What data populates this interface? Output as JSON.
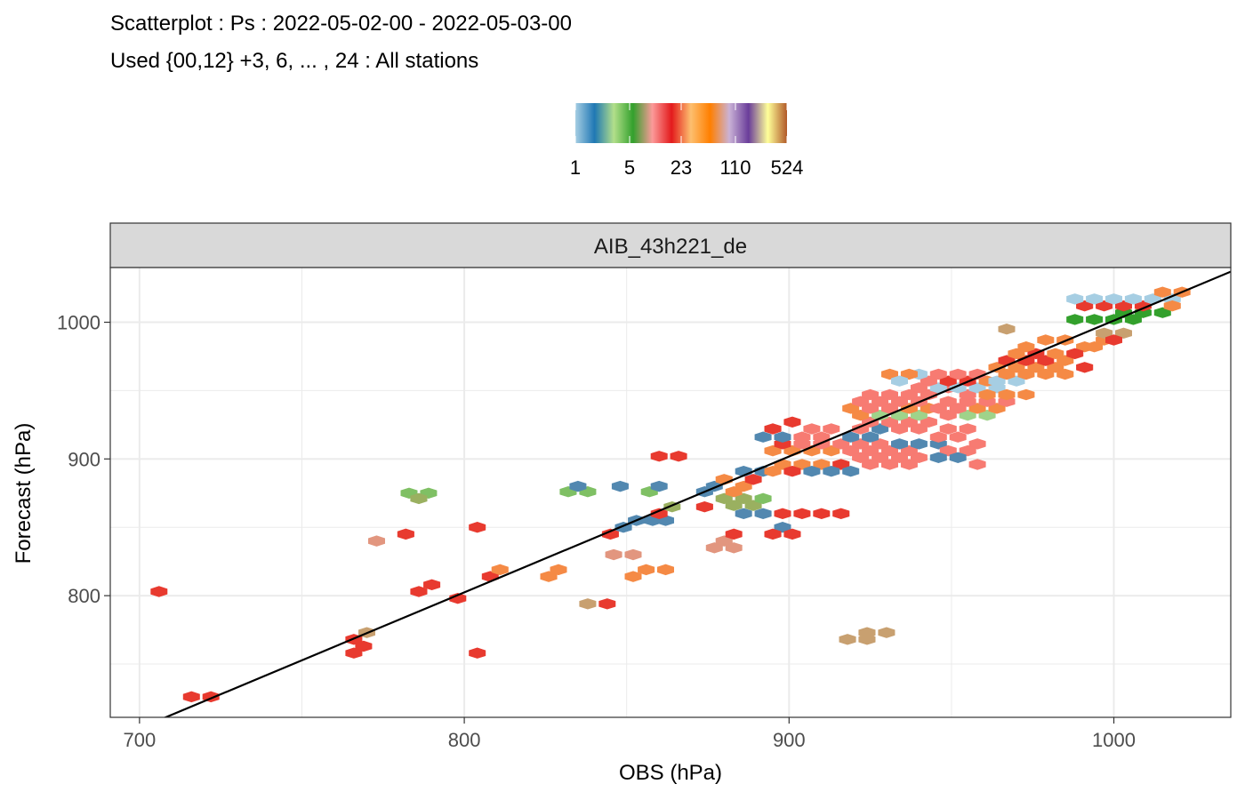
{
  "chart_data": {
    "type": "heatmap",
    "title": "Scatterplot : Ps : 2022-05-02-00 - 2022-05-03-00",
    "subtitle": "Used {00,12} +3, 6, ... , 24 : All stations",
    "panel": "AIB_43h221_de",
    "xlabel": "OBS (hPa)",
    "ylabel": "Forecast (hPa)",
    "xlim": [
      691,
      1036
    ],
    "ylim": [
      711,
      1040
    ],
    "xticks": [
      700,
      800,
      900,
      1000
    ],
    "yticks": [
      800,
      900,
      1000
    ],
    "grid": true,
    "legend": {
      "position": "top",
      "labels": [
        "1",
        "5",
        "23",
        "110",
        "524"
      ],
      "colors": [
        "#a6cee3",
        "#1f78b4",
        "#b2df8a",
        "#33a02c",
        "#fb9a99",
        "#e31a1c",
        "#fdbf6f",
        "#ff7f00",
        "#cab2d6",
        "#6a3d9a",
        "#ffff99",
        "#b15928"
      ]
    },
    "reference_line": {
      "x": [
        700,
        1036
      ],
      "y": [
        703,
        1037
      ]
    },
    "bins": [
      {
        "x": 706,
        "y": 803,
        "c": "#e83a2f"
      },
      {
        "x": 716,
        "y": 726,
        "c": "#e83a2f"
      },
      {
        "x": 722,
        "y": 726,
        "c": "#e83a2f"
      },
      {
        "x": 766,
        "y": 768,
        "c": "#e83a2f"
      },
      {
        "x": 769,
        "y": 763,
        "c": "#e83a2f"
      },
      {
        "x": 766,
        "y": 758,
        "c": "#e83a2f"
      },
      {
        "x": 770,
        "y": 773,
        "c": "#c8a070"
      },
      {
        "x": 773,
        "y": 840,
        "c": "#e2967f"
      },
      {
        "x": 782,
        "y": 845,
        "c": "#e83a2f"
      },
      {
        "x": 783,
        "y": 875,
        "c": "#7fc064"
      },
      {
        "x": 789,
        "y": 875,
        "c": "#7fc064"
      },
      {
        "x": 786,
        "y": 871,
        "c": "#9ab060"
      },
      {
        "x": 786,
        "y": 803,
        "c": "#e83a2f"
      },
      {
        "x": 790,
        "y": 808,
        "c": "#e83a2f"
      },
      {
        "x": 798,
        "y": 798,
        "c": "#e83a2f"
      },
      {
        "x": 804,
        "y": 850,
        "c": "#e83a2f"
      },
      {
        "x": 804,
        "y": 758,
        "c": "#e83a2f"
      },
      {
        "x": 808,
        "y": 814,
        "c": "#e83a2f"
      },
      {
        "x": 811,
        "y": 819,
        "c": "#f58a45"
      },
      {
        "x": 826,
        "y": 814,
        "c": "#f58a45"
      },
      {
        "x": 829,
        "y": 819,
        "c": "#f58a45"
      },
      {
        "x": 832,
        "y": 876,
        "c": "#7fc064"
      },
      {
        "x": 838,
        "y": 876,
        "c": "#7fc064"
      },
      {
        "x": 835,
        "y": 880,
        "c": "#5288b0"
      },
      {
        "x": 838,
        "y": 794,
        "c": "#c8a070"
      },
      {
        "x": 844,
        "y": 794,
        "c": "#e83a2f"
      },
      {
        "x": 845,
        "y": 845,
        "c": "#e83a2f"
      },
      {
        "x": 849,
        "y": 850,
        "c": "#5288b0"
      },
      {
        "x": 853,
        "y": 855,
        "c": "#5288b0"
      },
      {
        "x": 858,
        "y": 855,
        "c": "#5288b0"
      },
      {
        "x": 862,
        "y": 855,
        "c": "#5288b0"
      },
      {
        "x": 848,
        "y": 880,
        "c": "#5288b0"
      },
      {
        "x": 846,
        "y": 830,
        "c": "#e2967f"
      },
      {
        "x": 852,
        "y": 830,
        "c": "#e2967f"
      },
      {
        "x": 852,
        "y": 814,
        "c": "#f58a45"
      },
      {
        "x": 856,
        "y": 819,
        "c": "#f58a45"
      },
      {
        "x": 862,
        "y": 819,
        "c": "#f58a45"
      },
      {
        "x": 857,
        "y": 876,
        "c": "#7fc064"
      },
      {
        "x": 860,
        "y": 880,
        "c": "#5288b0"
      },
      {
        "x": 860,
        "y": 860,
        "c": "#e83a2f"
      },
      {
        "x": 864,
        "y": 865,
        "c": "#9ab060"
      },
      {
        "x": 860,
        "y": 902,
        "c": "#e83a2f"
      },
      {
        "x": 866,
        "y": 902,
        "c": "#e83a2f"
      },
      {
        "x": 877,
        "y": 835,
        "c": "#e2967f"
      },
      {
        "x": 883,
        "y": 835,
        "c": "#e2967f"
      },
      {
        "x": 880,
        "y": 840,
        "c": "#e2967f"
      },
      {
        "x": 874,
        "y": 876,
        "c": "#5288b0"
      },
      {
        "x": 877,
        "y": 880,
        "c": "#5288b0"
      },
      {
        "x": 880,
        "y": 885,
        "c": "#f58a45"
      },
      {
        "x": 874,
        "y": 865,
        "c": "#e83a2f"
      },
      {
        "x": 880,
        "y": 871,
        "c": "#9ab060"
      },
      {
        "x": 886,
        "y": 871,
        "c": "#9ab060"
      },
      {
        "x": 883,
        "y": 866,
        "c": "#9ab060"
      },
      {
        "x": 889,
        "y": 866,
        "c": "#9ab060"
      },
      {
        "x": 892,
        "y": 871,
        "c": "#7fc064"
      },
      {
        "x": 883,
        "y": 876,
        "c": "#f58a45"
      },
      {
        "x": 883,
        "y": 845,
        "c": "#e83a2f"
      },
      {
        "x": 886,
        "y": 860,
        "c": "#5288b0"
      },
      {
        "x": 892,
        "y": 860,
        "c": "#5288b0"
      },
      {
        "x": 886,
        "y": 880,
        "c": "#f58a45"
      },
      {
        "x": 886,
        "y": 891,
        "c": "#5288b0"
      },
      {
        "x": 892,
        "y": 891,
        "c": "#5288b0"
      },
      {
        "x": 889,
        "y": 885,
        "c": "#e83a2f"
      },
      {
        "x": 898,
        "y": 850,
        "c": "#5288b0"
      },
      {
        "x": 895,
        "y": 845,
        "c": "#e83a2f"
      },
      {
        "x": 901,
        "y": 845,
        "c": "#e83a2f"
      },
      {
        "x": 898,
        "y": 860,
        "c": "#e83a2f"
      },
      {
        "x": 904,
        "y": 860,
        "c": "#e83a2f"
      },
      {
        "x": 910,
        "y": 860,
        "c": "#e83a2f"
      },
      {
        "x": 916,
        "y": 860,
        "c": "#e83a2f"
      },
      {
        "x": 895,
        "y": 891,
        "c": "#f58a45"
      },
      {
        "x": 898,
        "y": 896,
        "c": "#f58a45"
      },
      {
        "x": 904,
        "y": 896,
        "c": "#f58a45"
      },
      {
        "x": 910,
        "y": 896,
        "c": "#f58a45"
      },
      {
        "x": 916,
        "y": 896,
        "c": "#e83a2f"
      },
      {
        "x": 901,
        "y": 891,
        "c": "#e83a2f"
      },
      {
        "x": 907,
        "y": 891,
        "c": "#5288b0"
      },
      {
        "x": 913,
        "y": 891,
        "c": "#5288b0"
      },
      {
        "x": 919,
        "y": 891,
        "c": "#5288b0"
      },
      {
        "x": 895,
        "y": 906,
        "c": "#f58a45"
      },
      {
        "x": 901,
        "y": 906,
        "c": "#f58a45"
      },
      {
        "x": 907,
        "y": 906,
        "c": "#f58a45"
      },
      {
        "x": 913,
        "y": 906,
        "c": "#f58a45"
      },
      {
        "x": 898,
        "y": 911,
        "c": "#e83a2f"
      },
      {
        "x": 904,
        "y": 911,
        "c": "#f77b72"
      },
      {
        "x": 910,
        "y": 911,
        "c": "#f77b72"
      },
      {
        "x": 916,
        "y": 911,
        "c": "#f77b72"
      },
      {
        "x": 892,
        "y": 916,
        "c": "#5288b0"
      },
      {
        "x": 898,
        "y": 916,
        "c": "#5288b0"
      },
      {
        "x": 904,
        "y": 916,
        "c": "#f77b72"
      },
      {
        "x": 910,
        "y": 916,
        "c": "#f77b72"
      },
      {
        "x": 895,
        "y": 922,
        "c": "#e83a2f"
      },
      {
        "x": 901,
        "y": 927,
        "c": "#e83a2f"
      },
      {
        "x": 907,
        "y": 922,
        "c": "#f77b72"
      },
      {
        "x": 913,
        "y": 922,
        "c": "#f77b72"
      },
      {
        "x": 919,
        "y": 906,
        "c": "#f77b72"
      },
      {
        "x": 925,
        "y": 906,
        "c": "#f77b72"
      },
      {
        "x": 931,
        "y": 906,
        "c": "#f77b72"
      },
      {
        "x": 937,
        "y": 906,
        "c": "#f77b72"
      },
      {
        "x": 922,
        "y": 911,
        "c": "#f77b72"
      },
      {
        "x": 928,
        "y": 911,
        "c": "#f77b72"
      },
      {
        "x": 934,
        "y": 911,
        "c": "#5288b0"
      },
      {
        "x": 940,
        "y": 911,
        "c": "#5288b0"
      },
      {
        "x": 946,
        "y": 911,
        "c": "#5288b0"
      },
      {
        "x": 922,
        "y": 901,
        "c": "#f77b72"
      },
      {
        "x": 928,
        "y": 901,
        "c": "#f77b72"
      },
      {
        "x": 934,
        "y": 901,
        "c": "#f77b72"
      },
      {
        "x": 940,
        "y": 901,
        "c": "#f77b72"
      },
      {
        "x": 925,
        "y": 896,
        "c": "#f77b72"
      },
      {
        "x": 931,
        "y": 896,
        "c": "#f77b72"
      },
      {
        "x": 937,
        "y": 896,
        "c": "#f77b72"
      },
      {
        "x": 919,
        "y": 916,
        "c": "#5288b0"
      },
      {
        "x": 925,
        "y": 916,
        "c": "#5288b0"
      },
      {
        "x": 922,
        "y": 922,
        "c": "#f77b72"
      },
      {
        "x": 928,
        "y": 922,
        "c": "#5288b0"
      },
      {
        "x": 934,
        "y": 922,
        "c": "#f77b72"
      },
      {
        "x": 940,
        "y": 922,
        "c": "#f77b72"
      },
      {
        "x": 925,
        "y": 927,
        "c": "#f77b72"
      },
      {
        "x": 931,
        "y": 927,
        "c": "#f77b72"
      },
      {
        "x": 937,
        "y": 927,
        "c": "#f77b72"
      },
      {
        "x": 943,
        "y": 927,
        "c": "#f77b72"
      },
      {
        "x": 922,
        "y": 932,
        "c": "#f58a45"
      },
      {
        "x": 928,
        "y": 932,
        "c": "#9fd38a"
      },
      {
        "x": 934,
        "y": 932,
        "c": "#9fd38a"
      },
      {
        "x": 940,
        "y": 932,
        "c": "#9fd38a"
      },
      {
        "x": 919,
        "y": 937,
        "c": "#f58a45"
      },
      {
        "x": 925,
        "y": 937,
        "c": "#f77b72"
      },
      {
        "x": 931,
        "y": 937,
        "c": "#f77b72"
      },
      {
        "x": 937,
        "y": 937,
        "c": "#f58a45"
      },
      {
        "x": 943,
        "y": 937,
        "c": "#f58a45"
      },
      {
        "x": 922,
        "y": 942,
        "c": "#f77b72"
      },
      {
        "x": 928,
        "y": 942,
        "c": "#f77b72"
      },
      {
        "x": 934,
        "y": 942,
        "c": "#f77b72"
      },
      {
        "x": 940,
        "y": 942,
        "c": "#f77b72"
      },
      {
        "x": 925,
        "y": 947,
        "c": "#f77b72"
      },
      {
        "x": 931,
        "y": 947,
        "c": "#f77b72"
      },
      {
        "x": 937,
        "y": 947,
        "c": "#f77b72"
      },
      {
        "x": 946,
        "y": 916,
        "c": "#f77b72"
      },
      {
        "x": 952,
        "y": 916,
        "c": "#f77b72"
      },
      {
        "x": 958,
        "y": 911,
        "c": "#f77b72"
      },
      {
        "x": 949,
        "y": 922,
        "c": "#f77b72"
      },
      {
        "x": 955,
        "y": 922,
        "c": "#f77b72"
      },
      {
        "x": 949,
        "y": 906,
        "c": "#f77b72"
      },
      {
        "x": 955,
        "y": 906,
        "c": "#f77b72"
      },
      {
        "x": 946,
        "y": 901,
        "c": "#5288b0"
      },
      {
        "x": 952,
        "y": 901,
        "c": "#5288b0"
      },
      {
        "x": 958,
        "y": 896,
        "c": "#f77b72"
      },
      {
        "x": 949,
        "y": 932,
        "c": "#f77b72"
      },
      {
        "x": 955,
        "y": 932,
        "c": "#9fd38a"
      },
      {
        "x": 961,
        "y": 932,
        "c": "#9fd38a"
      },
      {
        "x": 946,
        "y": 937,
        "c": "#f77b72"
      },
      {
        "x": 952,
        "y": 937,
        "c": "#f77b72"
      },
      {
        "x": 958,
        "y": 937,
        "c": "#f58a45"
      },
      {
        "x": 964,
        "y": 937,
        "c": "#f58a45"
      },
      {
        "x": 949,
        "y": 942,
        "c": "#f77b72"
      },
      {
        "x": 955,
        "y": 942,
        "c": "#f77b72"
      },
      {
        "x": 961,
        "y": 942,
        "c": "#f77b72"
      },
      {
        "x": 967,
        "y": 942,
        "c": "#f77b72"
      },
      {
        "x": 943,
        "y": 947,
        "c": "#f77b72"
      },
      {
        "x": 949,
        "y": 952,
        "c": "#f77b72"
      },
      {
        "x": 955,
        "y": 947,
        "c": "#f77b72"
      },
      {
        "x": 946,
        "y": 952,
        "c": "#a6cee3"
      },
      {
        "x": 952,
        "y": 952,
        "c": "#a6cee3"
      },
      {
        "x": 958,
        "y": 952,
        "c": "#a6cee3"
      },
      {
        "x": 964,
        "y": 952,
        "c": "#a6cee3"
      },
      {
        "x": 943,
        "y": 957,
        "c": "#f77b72"
      },
      {
        "x": 949,
        "y": 957,
        "c": "#e83a2f"
      },
      {
        "x": 955,
        "y": 957,
        "c": "#e83a2f"
      },
      {
        "x": 961,
        "y": 957,
        "c": "#f58a45"
      },
      {
        "x": 940,
        "y": 962,
        "c": "#a6cee3"
      },
      {
        "x": 946,
        "y": 962,
        "c": "#f77b72"
      },
      {
        "x": 952,
        "y": 962,
        "c": "#f77b72"
      },
      {
        "x": 958,
        "y": 962,
        "c": "#f77b72"
      },
      {
        "x": 931,
        "y": 962,
        "c": "#f58a45"
      },
      {
        "x": 937,
        "y": 962,
        "c": "#f58a45"
      },
      {
        "x": 934,
        "y": 957,
        "c": "#a6cee3"
      },
      {
        "x": 940,
        "y": 952,
        "c": "#f77b72"
      },
      {
        "x": 961,
        "y": 947,
        "c": "#f58a45"
      },
      {
        "x": 967,
        "y": 947,
        "c": "#f58a45"
      },
      {
        "x": 973,
        "y": 947,
        "c": "#f58a45"
      },
      {
        "x": 964,
        "y": 957,
        "c": "#a6cee3"
      },
      {
        "x": 970,
        "y": 957,
        "c": "#a6cee3"
      },
      {
        "x": 967,
        "y": 962,
        "c": "#f58a45"
      },
      {
        "x": 973,
        "y": 962,
        "c": "#f58a45"
      },
      {
        "x": 964,
        "y": 967,
        "c": "#f58a45"
      },
      {
        "x": 970,
        "y": 967,
        "c": "#f58a45"
      },
      {
        "x": 976,
        "y": 967,
        "c": "#f58a45"
      },
      {
        "x": 982,
        "y": 967,
        "c": "#f58a45"
      },
      {
        "x": 967,
        "y": 972,
        "c": "#e83a2f"
      },
      {
        "x": 973,
        "y": 972,
        "c": "#e83a2f"
      },
      {
        "x": 979,
        "y": 972,
        "c": "#e83a2f"
      },
      {
        "x": 985,
        "y": 972,
        "c": "#f58a45"
      },
      {
        "x": 970,
        "y": 977,
        "c": "#f58a45"
      },
      {
        "x": 976,
        "y": 977,
        "c": "#e83a2f"
      },
      {
        "x": 982,
        "y": 977,
        "c": "#f58a45"
      },
      {
        "x": 979,
        "y": 962,
        "c": "#f58a45"
      },
      {
        "x": 985,
        "y": 962,
        "c": "#f58a45"
      },
      {
        "x": 991,
        "y": 967,
        "c": "#e83a2f"
      },
      {
        "x": 973,
        "y": 982,
        "c": "#f58a45"
      },
      {
        "x": 979,
        "y": 987,
        "c": "#f58a45"
      },
      {
        "x": 985,
        "y": 987,
        "c": "#f58a45"
      },
      {
        "x": 991,
        "y": 982,
        "c": "#f58a45"
      },
      {
        "x": 967,
        "y": 995,
        "c": "#c8a070"
      },
      {
        "x": 988,
        "y": 977,
        "c": "#e83a2f"
      },
      {
        "x": 994,
        "y": 982,
        "c": "#f58a45"
      },
      {
        "x": 997,
        "y": 987,
        "c": "#f58a45"
      },
      {
        "x": 997,
        "y": 992,
        "c": "#c8a070"
      },
      {
        "x": 1003,
        "y": 992,
        "c": "#c8a070"
      },
      {
        "x": 1000,
        "y": 987,
        "c": "#e83a2f"
      },
      {
        "x": 988,
        "y": 1002,
        "c": "#33a02c"
      },
      {
        "x": 994,
        "y": 1002,
        "c": "#33a02c"
      },
      {
        "x": 1000,
        "y": 1002,
        "c": "#33a02c"
      },
      {
        "x": 1003,
        "y": 1007,
        "c": "#33a02c"
      },
      {
        "x": 1009,
        "y": 1007,
        "c": "#33a02c"
      },
      {
        "x": 1015,
        "y": 1007,
        "c": "#33a02c"
      },
      {
        "x": 991,
        "y": 1012,
        "c": "#e83a2f"
      },
      {
        "x": 997,
        "y": 1012,
        "c": "#e83a2f"
      },
      {
        "x": 1003,
        "y": 1012,
        "c": "#e83a2f"
      },
      {
        "x": 1009,
        "y": 1012,
        "c": "#e83a2f"
      },
      {
        "x": 988,
        "y": 1017,
        "c": "#a6cee3"
      },
      {
        "x": 994,
        "y": 1017,
        "c": "#a6cee3"
      },
      {
        "x": 1000,
        "y": 1017,
        "c": "#a6cee3"
      },
      {
        "x": 1006,
        "y": 1017,
        "c": "#a6cee3"
      },
      {
        "x": 1012,
        "y": 1017,
        "c": "#a6cee3"
      },
      {
        "x": 1018,
        "y": 1017,
        "c": "#a6cee3"
      },
      {
        "x": 1015,
        "y": 1022,
        "c": "#f58a45"
      },
      {
        "x": 1021,
        "y": 1022,
        "c": "#f58a45"
      },
      {
        "x": 1018,
        "y": 1012,
        "c": "#f58a45"
      },
      {
        "x": 1006,
        "y": 1002,
        "c": "#33a02c"
      },
      {
        "x": 924,
        "y": 773,
        "c": "#c8a070"
      },
      {
        "x": 930,
        "y": 773,
        "c": "#c8a070"
      },
      {
        "x": 918,
        "y": 768,
        "c": "#c8a070"
      },
      {
        "x": 924,
        "y": 768,
        "c": "#c8a070"
      }
    ]
  }
}
